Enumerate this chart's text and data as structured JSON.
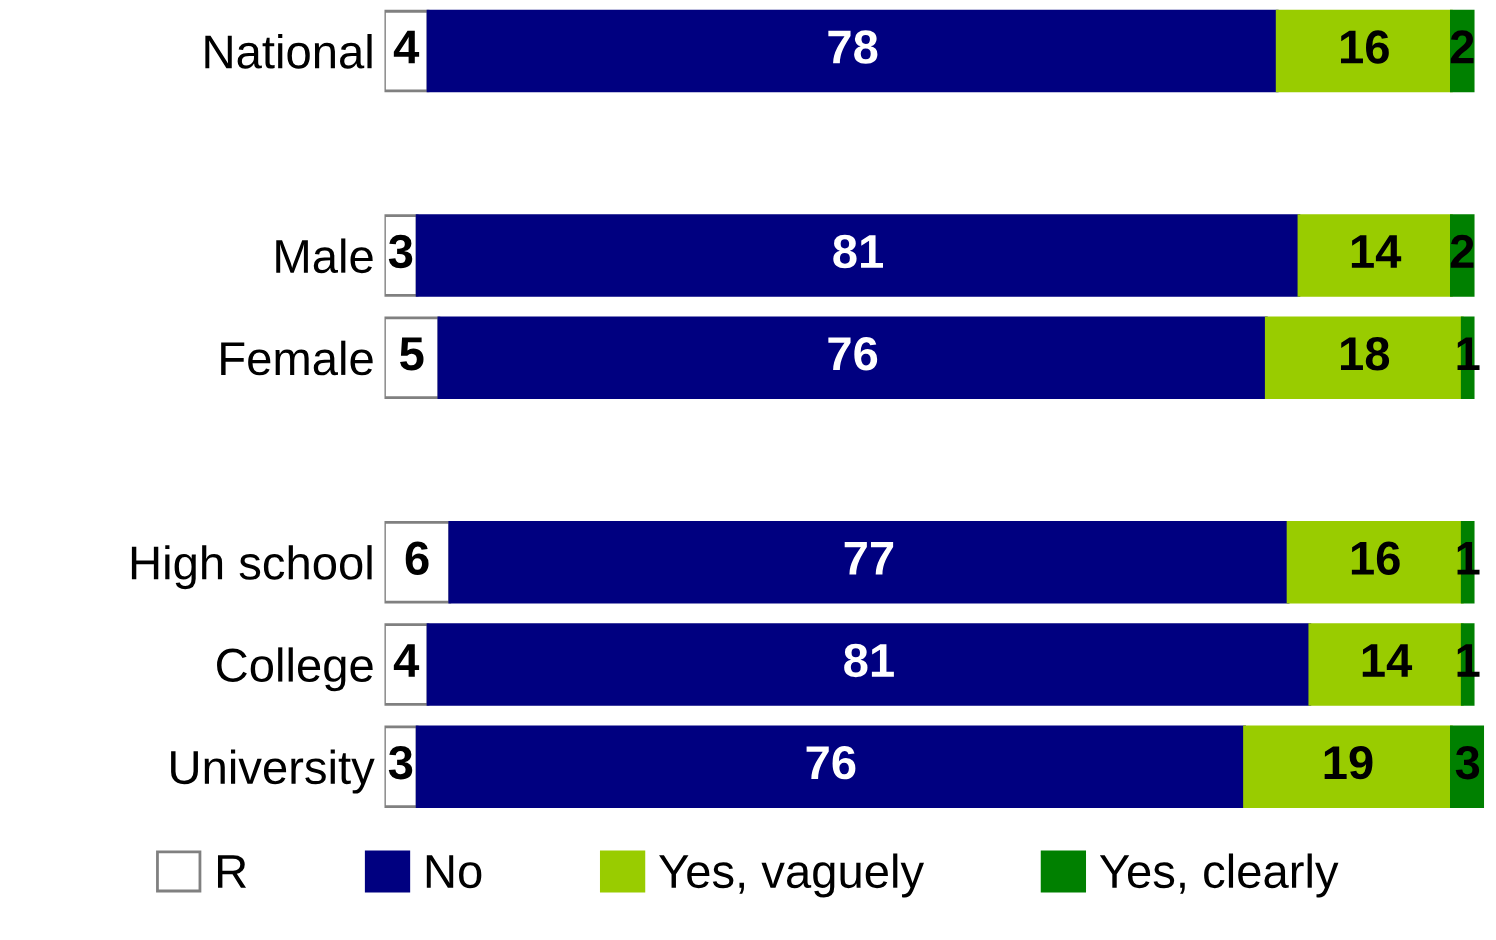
{
  "chart_data": {
    "type": "bar",
    "orientation": "horizontal",
    "stacked": true,
    "data_labels": true,
    "tick_labels": "y",
    "legend": "bottom",
    "grid": false,
    "xlim": [
      0,
      101
    ],
    "categories": [
      "National",
      null,
      "Male",
      "Female",
      null,
      "High school",
      "College",
      "University"
    ],
    "series": [
      {
        "name": "R",
        "color": "#ffffff",
        "values": [
          4,
          null,
          3,
          5,
          null,
          6,
          4,
          3
        ]
      },
      {
        "name": "No",
        "color": "#000080",
        "values": [
          78,
          null,
          81,
          76,
          null,
          77,
          81,
          76
        ]
      },
      {
        "name": "Yes, vaguely",
        "color": "#99cc00",
        "values": [
          16,
          null,
          14,
          18,
          null,
          16,
          14,
          19
        ]
      },
      {
        "name": "Yes, clearly",
        "color": "#008000",
        "values": [
          2,
          null,
          2,
          1,
          null,
          1,
          1,
          3
        ]
      }
    ]
  }
}
